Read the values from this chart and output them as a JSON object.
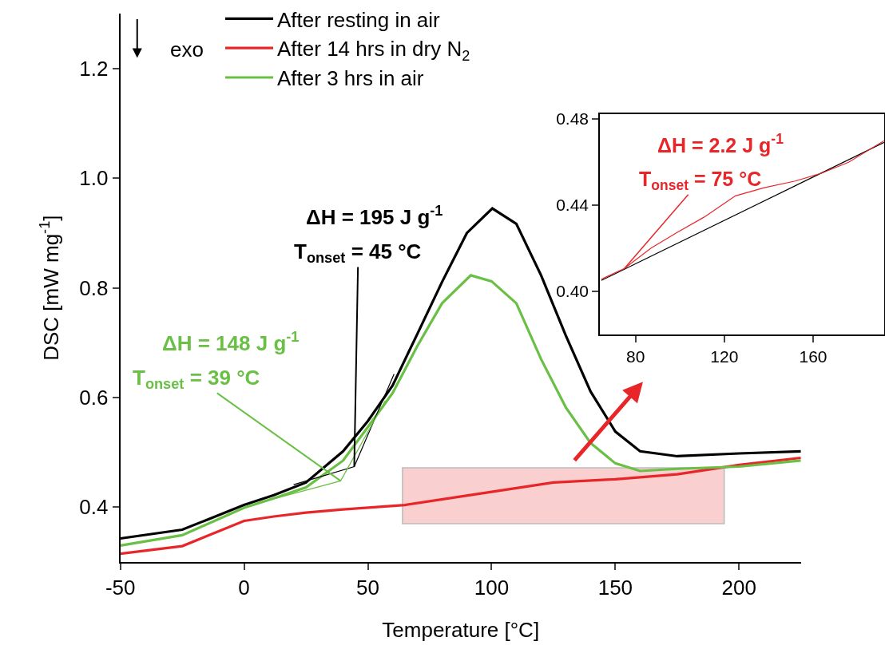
{
  "chart_data": [
    {
      "type": "line",
      "xlabel": "Temperature [°C]",
      "ylabel": "DSC [mW mg$^{-1}$]",
      "xlim": [
        -50,
        225
      ],
      "ylim": [
        0.3,
        1.3
      ],
      "xticks": [
        -50,
        0,
        50,
        100,
        150,
        200
      ],
      "yticks": [
        0.4,
        0.6,
        0.8,
        {
          "value": 1.0,
          "label": "1.0"
        },
        1.2
      ],
      "grid": false,
      "legend": "top left",
      "line_style": "solid",
      "marker": "none",
      "series": [
        {
          "name": "After resting in air",
          "color": "#000000",
          "x": [
            -50,
            -25,
            0,
            12,
            25,
            40,
            50,
            60,
            70,
            80,
            90,
            100.3,
            110,
            120,
            130,
            140,
            150,
            160,
            175,
            200,
            225
          ],
          "values": [
            0.343,
            0.359,
            0.404,
            0.422,
            0.445,
            0.502,
            0.557,
            0.622,
            0.716,
            0.811,
            0.9,
            0.945,
            0.917,
            0.823,
            0.713,
            0.611,
            0.538,
            0.502,
            0.493,
            0.498,
            0.502
          ]
        },
        {
          "name": "After 14 hrs in dry N$_{2}$",
          "color": "#e8262a",
          "x": [
            -50,
            -25,
            0,
            12,
            25,
            40,
            65,
            100,
            125,
            150,
            175,
            200,
            225
          ],
          "values": [
            0.315,
            0.329,
            0.375,
            0.383,
            0.39,
            0.396,
            0.404,
            0.428,
            0.445,
            0.451,
            0.46,
            0.477,
            0.49
          ]
        },
        {
          "name": "After 3 hrs in air",
          "color": "#6abf45",
          "x": [
            -50,
            -25,
            0,
            12,
            25,
            40,
            50,
            60,
            70,
            80,
            91.6,
            100,
            110,
            120,
            130,
            140,
            150,
            160,
            175,
            200,
            225
          ],
          "values": [
            0.33,
            0.349,
            0.399,
            0.416,
            0.436,
            0.485,
            0.546,
            0.608,
            0.694,
            0.772,
            0.823,
            0.812,
            0.772,
            0.67,
            0.582,
            0.517,
            0.48,
            0.466,
            0.47,
            0.474,
            0.485
          ]
        },
        {
          "color": "#000000",
          "x": [
            20,
            44.5,
            60.6
          ],
          "values": [
            0.441,
            0.474,
            0.643
          ]
        },
        {
          "color": "#6abf45",
          "x": [
            12.6,
            39,
            57
          ],
          "values": [
            0.416,
            0.448,
            0.594
          ]
        }
      ],
      "bands": [
        {
          "axis": "x",
          "from": 64,
          "to": 194,
          "color": "#f8c4c4"
        }
      ],
      "annotations": [
        "exo",
        "ΔH = 195 J g$^{-1}$",
        {
          "text": "T$_{onset}$ = 45 °C",
          "x": 44.5,
          "y": 0.474
        },
        "ΔH = 148 J g$^{-1}$",
        {
          "text": "T$_{onset}$ = 39 °C",
          "x": 39,
          "y": 0.448
        }
      ]
    },
    {
      "type": "line",
      "xlim": [
        64,
        192
      ],
      "ylim": [
        0.38,
        0.482
      ],
      "xticks": [
        80,
        120,
        160
      ],
      "yticks": [
        {
          "value": 0.4,
          "label": "0.40"
        },
        0.44,
        0.48
      ],
      "grid": false,
      "line_style": "solid",
      "marker": "none",
      "series": [
        {
          "color": "#000000",
          "x": [
            64.6,
            192
          ],
          "values": [
            0.405,
            0.469
          ]
        },
        {
          "color": "#e8262a",
          "x": [
            64.6,
            75,
            87,
            99,
            110.8,
            125,
            138,
            152,
            164,
            176,
            192
          ],
          "values": [
            0.4056,
            0.4106,
            0.42,
            0.4274,
            0.4343,
            0.4442,
            0.448,
            0.4511,
            0.4548,
            0.4598,
            0.4698
          ]
        }
      ],
      "annotations": [
        "ΔH = 2.2 J g$^{-1}$",
        {
          "text": "T$_{onset}$ = 75 °C",
          "x": 75,
          "y": 0.4106
        }
      ]
    }
  ]
}
